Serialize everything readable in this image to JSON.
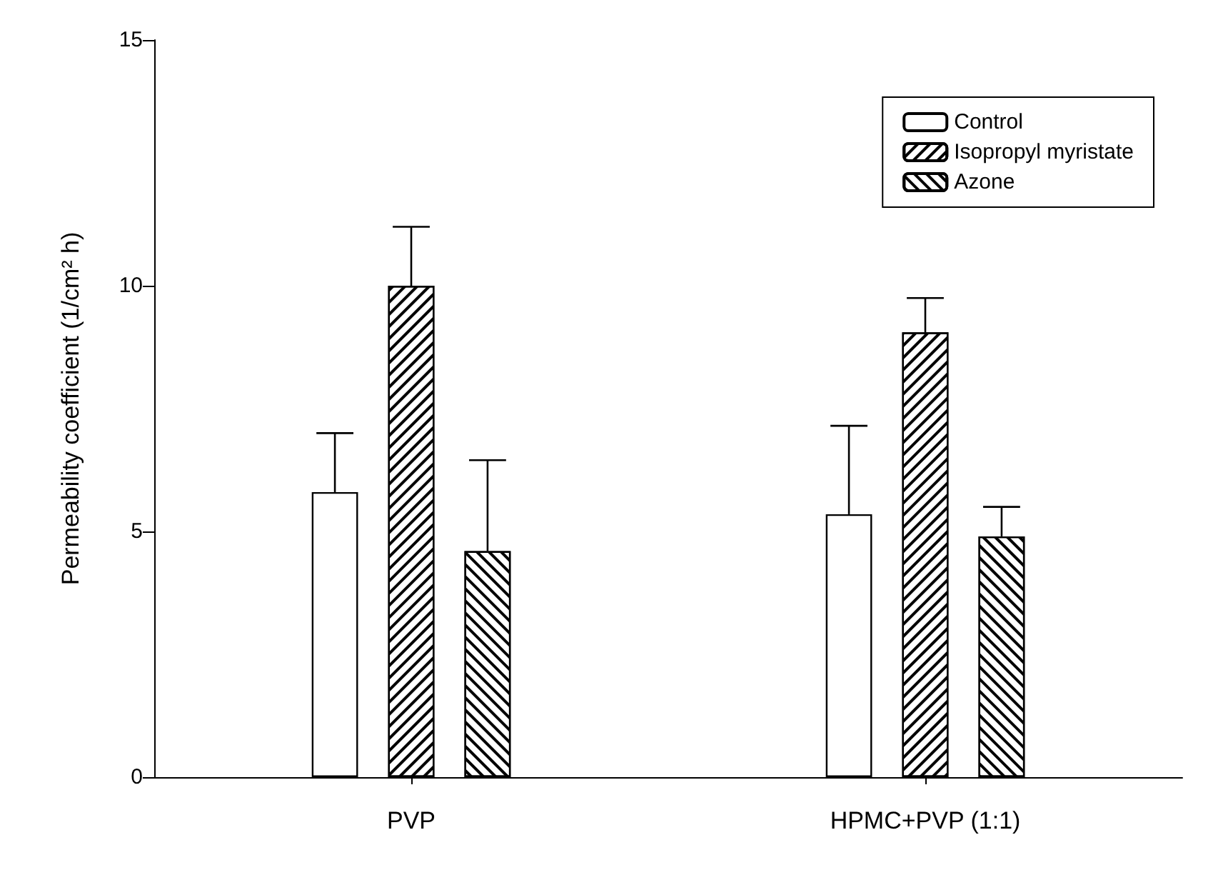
{
  "chart_data": {
    "type": "bar",
    "ylabel": "Permeability coefficient (1/cm² h)",
    "categories": [
      "PVP",
      "HPMC+PVP (1:1)"
    ],
    "series": [
      {
        "name": "Control",
        "color": "#ffffff",
        "values": [
          5.8,
          5.35
        ],
        "errors": [
          1.2,
          1.8
        ]
      },
      {
        "name": "Isopropyl myristate",
        "color": "#000000",
        "values": [
          10.0,
          9.05
        ],
        "errors": [
          1.2,
          0.7
        ]
      },
      {
        "name": "Azone",
        "color": "#000000",
        "values": [
          4.6,
          4.9
        ],
        "errors": [
          1.85,
          0.6
        ]
      }
    ],
    "ylim": [
      0,
      15
    ],
    "yticks": [
      0,
      5,
      10,
      15
    ],
    "grid": false,
    "legend": "top right"
  }
}
